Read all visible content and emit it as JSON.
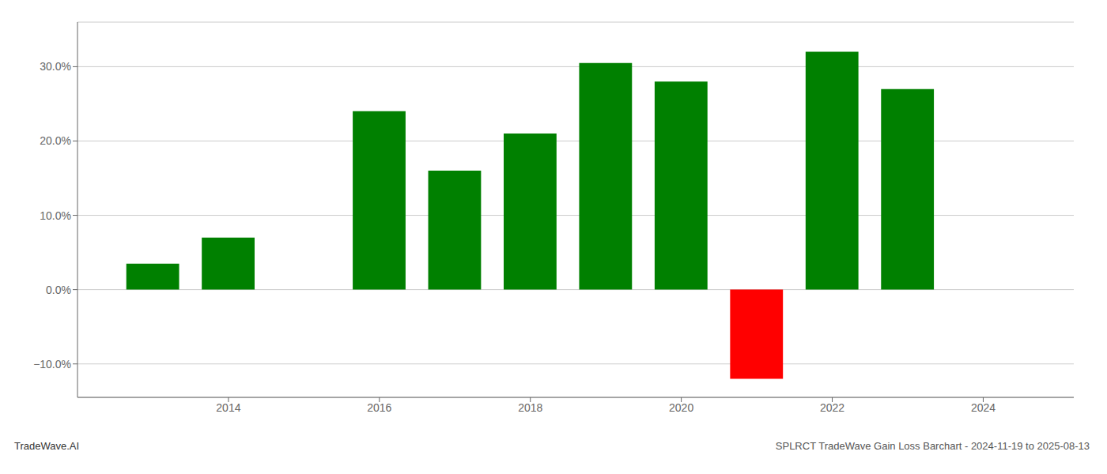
{
  "chart_data": {
    "type": "bar",
    "x": [
      2013,
      2014,
      2016,
      2017,
      2018,
      2019,
      2020,
      2021,
      2022,
      2023
    ],
    "values": [
      3.5,
      7.0,
      24.0,
      16.0,
      21.0,
      30.5,
      28.0,
      -12.0,
      32.0,
      27.0
    ],
    "colors": [
      "#008000",
      "#008000",
      "#008000",
      "#008000",
      "#008000",
      "#008000",
      "#008000",
      "#ff0000",
      "#008000",
      "#008000"
    ],
    "xlim": [
      2012,
      2025.2
    ],
    "xticks": [
      2014,
      2016,
      2018,
      2020,
      2022,
      2024
    ],
    "ylim": [
      -14.5,
      36
    ],
    "yticks": [
      {
        "value": -10,
        "label": "−10.0%"
      },
      {
        "value": 0,
        "label": "0.0%"
      },
      {
        "value": 10,
        "label": "10.0%"
      },
      {
        "value": 20,
        "label": "20.0%"
      },
      {
        "value": 30,
        "label": "30.0%"
      }
    ],
    "grid": true,
    "annotations": [
      "TradeWave.AI",
      "SPLRCT TradeWave Gain Loss Barchart - 2024-11-19 to 2025-08-13"
    ]
  }
}
